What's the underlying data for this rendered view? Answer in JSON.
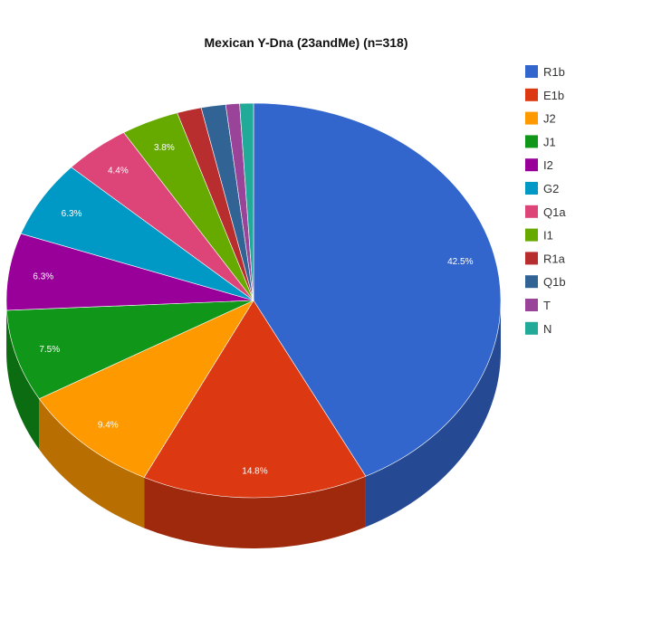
{
  "chart_data": {
    "type": "pie",
    "style": "3d",
    "title": "Mexican Y-Dna (23andMe) (n=318)",
    "legend_position": "right",
    "slices": [
      {
        "label": "R1b",
        "value": 42.5,
        "color": "#3366cc",
        "data_label": "42.5%"
      },
      {
        "label": "E1b",
        "value": 14.8,
        "color": "#dc3912",
        "data_label": "14.8%"
      },
      {
        "label": "J2",
        "value": 9.4,
        "color": "#ff9900",
        "data_label": "9.4%"
      },
      {
        "label": "J1",
        "value": 7.5,
        "color": "#109618",
        "data_label": "7.5%"
      },
      {
        "label": "I2",
        "value": 6.3,
        "color": "#990099",
        "data_label": "6.3%"
      },
      {
        "label": "G2",
        "value": 6.3,
        "color": "#0099c6",
        "data_label": "6.3%"
      },
      {
        "label": "Q1a",
        "value": 4.4,
        "color": "#dd4477",
        "data_label": "4.4%"
      },
      {
        "label": "I1",
        "value": 3.8,
        "color": "#66aa00",
        "data_label": "3.8%"
      },
      {
        "label": "R1a",
        "value": 1.6,
        "color": "#b82e2e",
        "data_label": ""
      },
      {
        "label": "Q1b",
        "value": 1.6,
        "color": "#316395",
        "data_label": ""
      },
      {
        "label": "T",
        "value": 0.9,
        "color": "#994499",
        "data_label": ""
      },
      {
        "label": "N",
        "value": 0.9,
        "color": "#22aa99",
        "data_label": ""
      }
    ]
  }
}
